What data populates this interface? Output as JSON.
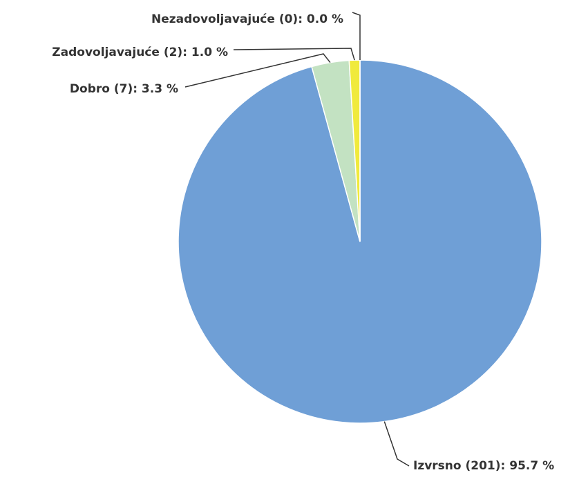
{
  "chart_data": {
    "type": "pie",
    "categories": [
      "Izvrsno",
      "Dobro",
      "Zadovoljavajuće",
      "Nezadovoljavajuće"
    ],
    "values": [
      201,
      7,
      2,
      0
    ],
    "value_labels": [
      "Izvrsno (201): 95.7 %",
      "Dobro (7): 3.3 %",
      "Zadovoljavajuće (2): 1.0 %",
      "Nezadovoljavajuće (0): 0.0 %"
    ],
    "colors": [
      "#6f9fd6",
      "#c3e2c2",
      "#f0ea3c",
      "#e8a33c"
    ]
  }
}
